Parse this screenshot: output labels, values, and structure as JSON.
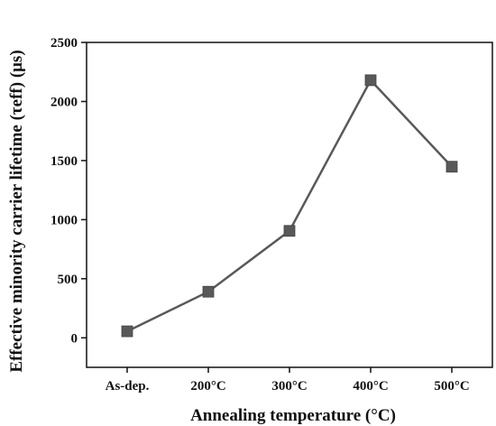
{
  "chart_data": {
    "type": "line",
    "categories": [
      "As-dep.",
      "200°C",
      "300°C",
      "400°C",
      "500°C"
    ],
    "series": [
      {
        "values": [
          55,
          390,
          905,
          2180,
          1448
        ]
      }
    ],
    "xlabel": "Annealing temperature (°C)",
    "ylabel": "Effective minority carrier lifetime (τeff) (μs)",
    "ylim": [
      -250,
      2500
    ],
    "yticks": [
      0,
      500,
      1000,
      1500,
      2000,
      2500
    ],
    "grid": false,
    "marker": "square",
    "colors": {
      "line": "#595959",
      "marker": "#595959",
      "axis": "#111111"
    }
  }
}
